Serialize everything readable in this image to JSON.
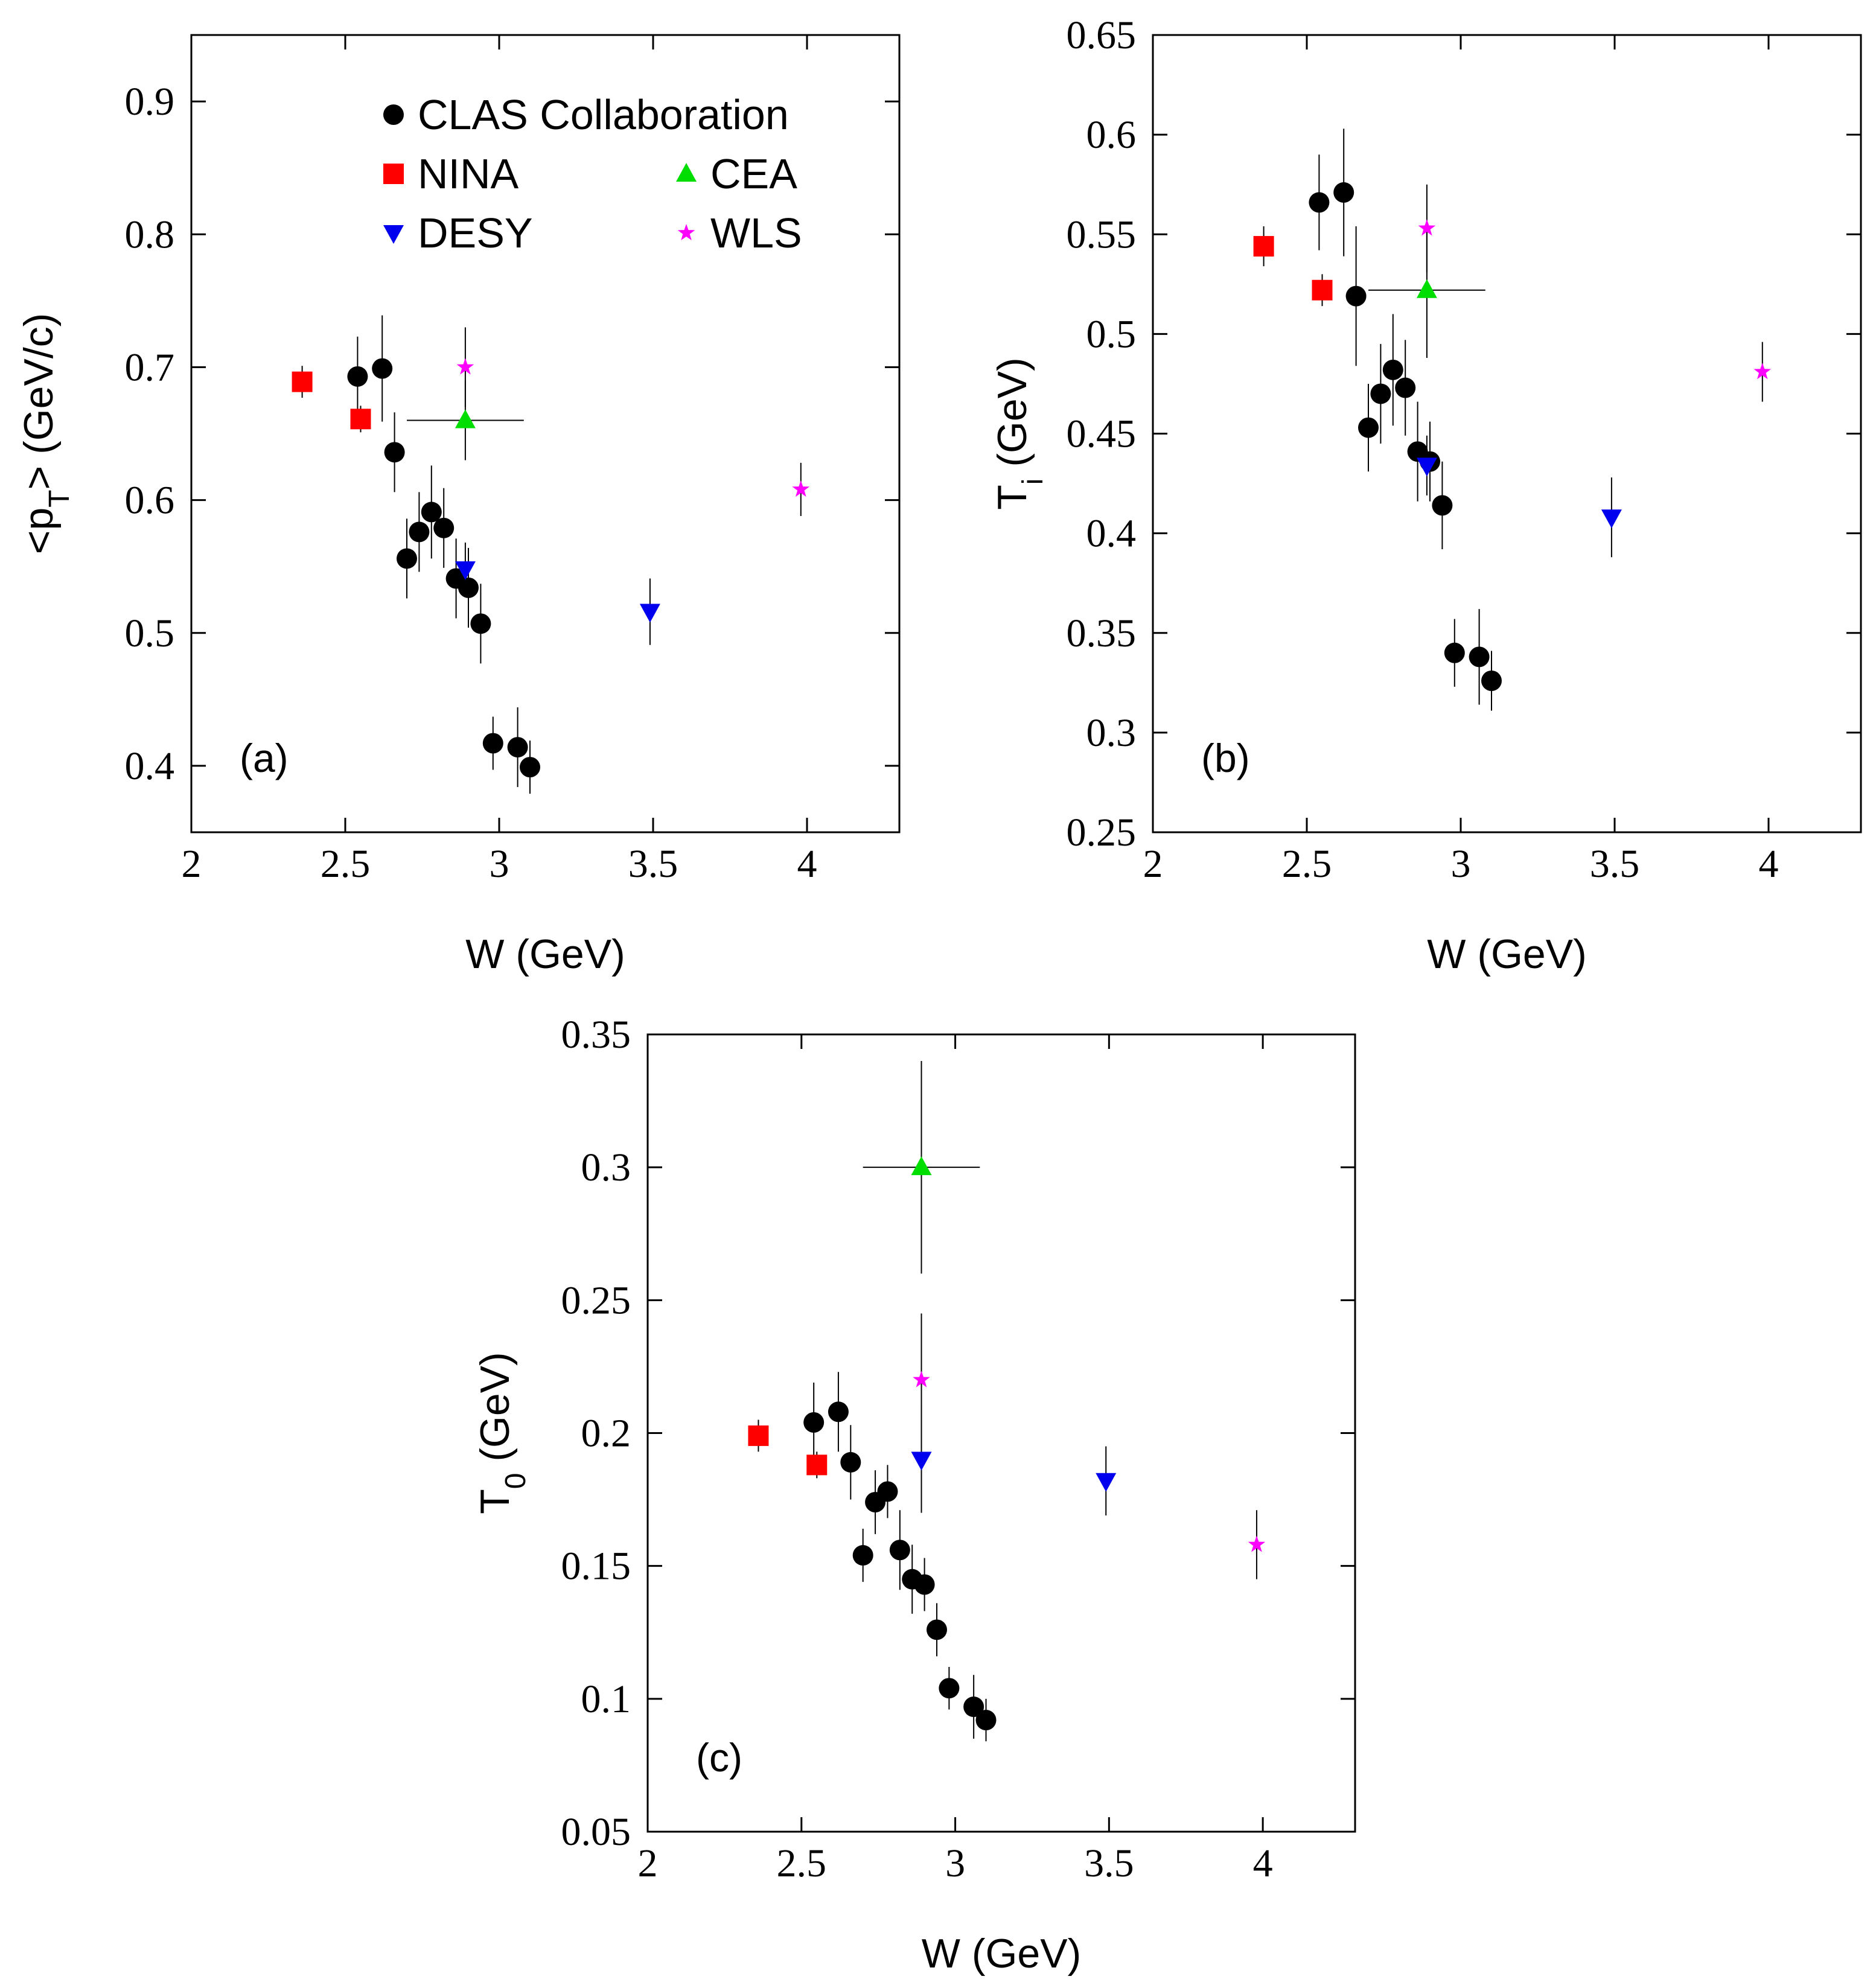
{
  "legend": {
    "entries": [
      {
        "name": "CLAS Collaboration",
        "marker": "circle",
        "color": "#000000"
      },
      {
        "name": "NINA",
        "marker": "square",
        "color": "#ff0000"
      },
      {
        "name": "CEA",
        "marker": "triangle-up",
        "color": "#00dd00"
      },
      {
        "name": "DESY",
        "marker": "triangle-down",
        "color": "#0000ee"
      },
      {
        "name": "WLS",
        "marker": "star",
        "color": "#ff00ff"
      }
    ]
  },
  "chart_data": [
    {
      "type": "scatter",
      "panel": "(a)",
      "xlabel": "W (GeV)",
      "ylabel_parts": {
        "pre": "<p",
        "sub": "T",
        "post": "> (GeV/c)"
      },
      "xlim": [
        2,
        4.3
      ],
      "ylim": [
        0.35,
        0.95
      ],
      "xticks": [
        {
          "v": 2,
          "label": "2"
        },
        {
          "v": 2.5,
          "label": "2.5"
        },
        {
          "v": 3,
          "label": "3"
        },
        {
          "v": 3.5,
          "label": "3.5"
        },
        {
          "v": 4,
          "label": "4"
        }
      ],
      "yticks": [
        {
          "v": 0.4,
          "label": "0.4"
        },
        {
          "v": 0.5,
          "label": "0.5"
        },
        {
          "v": 0.6,
          "label": "0.6"
        },
        {
          "v": 0.7,
          "label": "0.7"
        },
        {
          "v": 0.8,
          "label": "0.8"
        },
        {
          "v": 0.9,
          "label": "0.9"
        }
      ],
      "show_legend": true,
      "series": [
        {
          "name": "CLAS Collaboration",
          "points": [
            {
              "x": 2.54,
              "y": 0.693,
              "yerr": 0.03
            },
            {
              "x": 2.62,
              "y": 0.699,
              "yerr": 0.04
            },
            {
              "x": 2.66,
              "y": 0.636,
              "yerr": 0.03
            },
            {
              "x": 2.7,
              "y": 0.556,
              "yerr": 0.03
            },
            {
              "x": 2.74,
              "y": 0.576,
              "yerr": 0.03
            },
            {
              "x": 2.78,
              "y": 0.591,
              "yerr": 0.035
            },
            {
              "x": 2.82,
              "y": 0.579,
              "yerr": 0.03
            },
            {
              "x": 2.86,
              "y": 0.541,
              "yerr": 0.03
            },
            {
              "x": 2.9,
              "y": 0.534,
              "yerr": 0.03
            },
            {
              "x": 2.94,
              "y": 0.507,
              "yerr": 0.03
            },
            {
              "x": 2.98,
              "y": 0.417,
              "yerr": 0.02
            },
            {
              "x": 3.06,
              "y": 0.414,
              "yerr": 0.03
            },
            {
              "x": 3.1,
              "y": 0.399,
              "yerr": 0.02
            }
          ]
        },
        {
          "name": "NINA",
          "points": [
            {
              "x": 2.36,
              "y": 0.689,
              "yerr": 0.012
            },
            {
              "x": 2.55,
              "y": 0.661,
              "yerr": 0.01
            }
          ]
        },
        {
          "name": "CEA",
          "points": [
            {
              "x": 2.89,
              "y": 0.66,
              "yerr": 0.03,
              "xerr": 0.19
            }
          ]
        },
        {
          "name": "DESY",
          "points": [
            {
              "x": 2.89,
              "y": 0.548,
              "yerr": 0.02
            },
            {
              "x": 3.49,
              "y": 0.516,
              "yerr": 0.025
            }
          ]
        },
        {
          "name": "WLS",
          "points": [
            {
              "x": 2.89,
              "y": 0.7,
              "yerr": 0.03
            },
            {
              "x": 3.98,
              "y": 0.608,
              "yerr": 0.02
            }
          ]
        }
      ]
    },
    {
      "type": "scatter",
      "panel": "(b)",
      "xlabel": "W (GeV)",
      "ylabel_parts": {
        "pre": "T",
        "sub": "i",
        "post": " (GeV)"
      },
      "xlim": [
        2,
        4.3
      ],
      "ylim": [
        0.25,
        0.65
      ],
      "xticks": [
        {
          "v": 2,
          "label": "2"
        },
        {
          "v": 2.5,
          "label": "2.5"
        },
        {
          "v": 3,
          "label": "3"
        },
        {
          "v": 3.5,
          "label": "3.5"
        },
        {
          "v": 4,
          "label": "4"
        }
      ],
      "yticks": [
        {
          "v": 0.25,
          "label": "0.25"
        },
        {
          "v": 0.3,
          "label": "0.3"
        },
        {
          "v": 0.35,
          "label": "0.35"
        },
        {
          "v": 0.4,
          "label": "0.4"
        },
        {
          "v": 0.45,
          "label": "0.45"
        },
        {
          "v": 0.5,
          "label": "0.5"
        },
        {
          "v": 0.55,
          "label": "0.55"
        },
        {
          "v": 0.6,
          "label": "0.6"
        },
        {
          "v": 0.65,
          "label": "0.65"
        }
      ],
      "show_legend": false,
      "series": [
        {
          "name": "CLAS Collaboration",
          "points": [
            {
              "x": 2.54,
              "y": 0.566,
              "yerr": 0.024
            },
            {
              "x": 2.62,
              "y": 0.571,
              "yerr": 0.032
            },
            {
              "x": 2.66,
              "y": 0.519,
              "yerr": 0.035
            },
            {
              "x": 2.7,
              "y": 0.453,
              "yerr": 0.022
            },
            {
              "x": 2.74,
              "y": 0.47,
              "yerr": 0.025
            },
            {
              "x": 2.78,
              "y": 0.482,
              "yerr": 0.028
            },
            {
              "x": 2.82,
              "y": 0.473,
              "yerr": 0.024
            },
            {
              "x": 2.86,
              "y": 0.441,
              "yerr": 0.025
            },
            {
              "x": 2.9,
              "y": 0.436,
              "yerr": 0.02
            },
            {
              "x": 2.94,
              "y": 0.414,
              "yerr": 0.022
            },
            {
              "x": 2.98,
              "y": 0.34,
              "yerr": 0.017
            },
            {
              "x": 3.06,
              "y": 0.338,
              "yerr": 0.024
            },
            {
              "x": 3.1,
              "y": 0.326,
              "yerr": 0.015
            }
          ]
        },
        {
          "name": "NINA",
          "points": [
            {
              "x": 2.36,
              "y": 0.544,
              "yerr": 0.01
            },
            {
              "x": 2.55,
              "y": 0.522,
              "yerr": 0.008
            }
          ]
        },
        {
          "name": "CEA",
          "points": [
            {
              "x": 2.89,
              "y": 0.522,
              "yerr": 0.034,
              "xerr": 0.19
            }
          ]
        },
        {
          "name": "DESY",
          "points": [
            {
              "x": 2.89,
              "y": 0.434,
              "yerr": 0.015
            },
            {
              "x": 3.49,
              "y": 0.408,
              "yerr": 0.02
            }
          ]
        },
        {
          "name": "WLS",
          "points": [
            {
              "x": 2.89,
              "y": 0.553,
              "yerr": 0.022
            },
            {
              "x": 3.98,
              "y": 0.481,
              "yerr": 0.015
            }
          ]
        }
      ]
    },
    {
      "type": "scatter",
      "panel": "(c)",
      "xlabel": "W (GeV)",
      "ylabel_parts": {
        "pre": "T",
        "sub": "0",
        "post": " (GeV)"
      },
      "xlim": [
        2,
        4.3
      ],
      "ylim": [
        0.05,
        0.35
      ],
      "xticks": [
        {
          "v": 2,
          "label": "2"
        },
        {
          "v": 2.5,
          "label": "2.5"
        },
        {
          "v": 3,
          "label": "3"
        },
        {
          "v": 3.5,
          "label": "3.5"
        },
        {
          "v": 4,
          "label": "4"
        }
      ],
      "yticks": [
        {
          "v": 0.05,
          "label": "0.05"
        },
        {
          "v": 0.1,
          "label": "0.1"
        },
        {
          "v": 0.15,
          "label": "0.15"
        },
        {
          "v": 0.2,
          "label": "0.2"
        },
        {
          "v": 0.25,
          "label": "0.25"
        },
        {
          "v": 0.3,
          "label": "0.3"
        },
        {
          "v": 0.35,
          "label": "0.35"
        }
      ],
      "show_legend": false,
      "series": [
        {
          "name": "CLAS Collaboration",
          "points": [
            {
              "x": 2.54,
              "y": 0.204,
              "yerr": 0.015
            },
            {
              "x": 2.62,
              "y": 0.208,
              "yerr": 0.015
            },
            {
              "x": 2.66,
              "y": 0.189,
              "yerr": 0.014
            },
            {
              "x": 2.7,
              "y": 0.154,
              "yerr": 0.01
            },
            {
              "x": 2.74,
              "y": 0.174,
              "yerr": 0.012
            },
            {
              "x": 2.78,
              "y": 0.178,
              "yerr": 0.01
            },
            {
              "x": 2.82,
              "y": 0.156,
              "yerr": 0.015
            },
            {
              "x": 2.86,
              "y": 0.145,
              "yerr": 0.013
            },
            {
              "x": 2.9,
              "y": 0.143,
              "yerr": 0.01
            },
            {
              "x": 2.94,
              "y": 0.126,
              "yerr": 0.01
            },
            {
              "x": 2.98,
              "y": 0.104,
              "yerr": 0.008
            },
            {
              "x": 3.06,
              "y": 0.097,
              "yerr": 0.012
            },
            {
              "x": 3.1,
              "y": 0.092,
              "yerr": 0.008
            }
          ]
        },
        {
          "name": "NINA",
          "points": [
            {
              "x": 2.36,
              "y": 0.199,
              "yerr": 0.006
            },
            {
              "x": 2.55,
              "y": 0.188,
              "yerr": 0.005
            }
          ]
        },
        {
          "name": "CEA",
          "points": [
            {
              "x": 2.89,
              "y": 0.3,
              "yerr": 0.04,
              "xerr": 0.19
            }
          ]
        },
        {
          "name": "DESY",
          "points": [
            {
              "x": 2.89,
              "y": 0.19,
              "yerr": 0.02
            },
            {
              "x": 3.49,
              "y": 0.182,
              "yerr": 0.013
            }
          ]
        },
        {
          "name": "WLS",
          "points": [
            {
              "x": 2.89,
              "y": 0.22,
              "yerr": 0.025
            },
            {
              "x": 3.98,
              "y": 0.158,
              "yerr": 0.013
            }
          ]
        }
      ]
    }
  ]
}
